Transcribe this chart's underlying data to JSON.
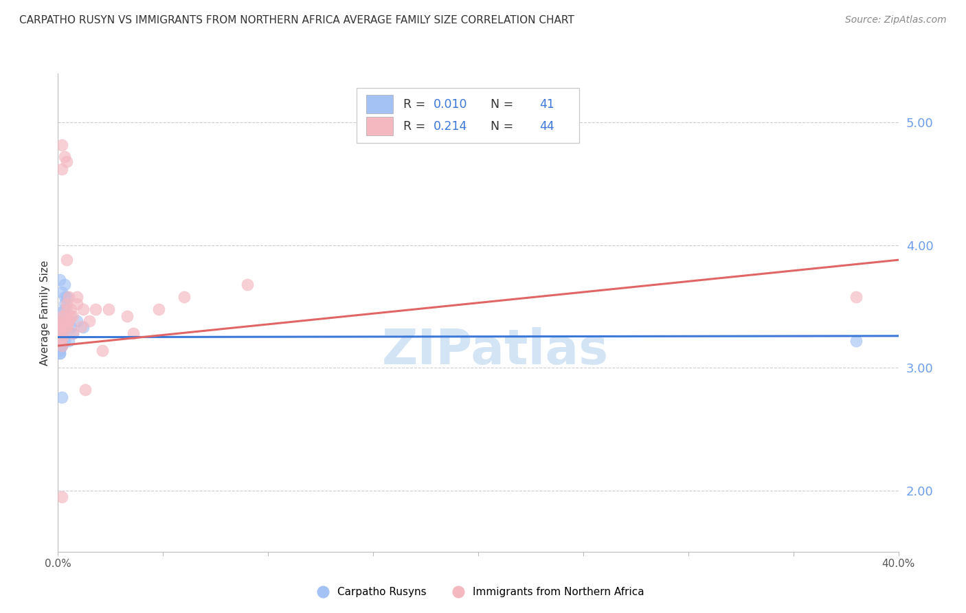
{
  "title": "CARPATHO RUSYN VS IMMIGRANTS FROM NORTHERN AFRICA AVERAGE FAMILY SIZE CORRELATION CHART",
  "source": "Source: ZipAtlas.com",
  "ylabel": "Average Family Size",
  "right_yticks": [
    2.0,
    3.0,
    4.0,
    5.0
  ],
  "right_ytick_labels": [
    "2.00",
    "3.00",
    "4.00",
    "5.00"
  ],
  "blue_color": "#a4c2f4",
  "pink_color": "#f4b8c1",
  "blue_line_color": "#3c78d8",
  "pink_line_color": "#e06666",
  "right_axis_color": "#6d9eeb",
  "legend_blue_text_color": "#3c78d8",
  "legend_black_color": "#333333",
  "watermark_color": "#cfe2f3",
  "watermark": "ZIPatlas",
  "blue_scatter_x": [
    0.001,
    0.002,
    0.001,
    0.002,
    0.003,
    0.001,
    0.002,
    0.001,
    0.002,
    0.002,
    0.001,
    0.002,
    0.003,
    0.002,
    0.001,
    0.002,
    0.003,
    0.002,
    0.003,
    0.001,
    0.002,
    0.003,
    0.002,
    0.004,
    0.003,
    0.002,
    0.002,
    0.001,
    0.003,
    0.003,
    0.007,
    0.006,
    0.005,
    0.009,
    0.012,
    0.002,
    0.002,
    0.001,
    0.002,
    0.001,
    0.38
  ],
  "blue_scatter_y": [
    3.72,
    3.62,
    3.45,
    3.35,
    3.58,
    3.22,
    3.26,
    3.3,
    3.38,
    3.18,
    3.14,
    3.24,
    3.48,
    3.34,
    3.24,
    3.28,
    3.68,
    3.33,
    3.38,
    3.12,
    3.28,
    3.52,
    3.22,
    3.58,
    3.33,
    3.33,
    3.28,
    3.18,
    3.22,
    3.38,
    3.28,
    3.33,
    3.22,
    3.38,
    3.33,
    2.76,
    3.18,
    3.12,
    3.25,
    3.18,
    3.22
  ],
  "pink_scatter_x": [
    0.001,
    0.002,
    0.003,
    0.002,
    0.004,
    0.002,
    0.003,
    0.001,
    0.003,
    0.002,
    0.005,
    0.004,
    0.002,
    0.006,
    0.005,
    0.007,
    0.003,
    0.004,
    0.002,
    0.004,
    0.002,
    0.005,
    0.009,
    0.004,
    0.006,
    0.007,
    0.012,
    0.015,
    0.011,
    0.009,
    0.018,
    0.013,
    0.021,
    0.036,
    0.033,
    0.024,
    0.06,
    0.048,
    0.09,
    0.002,
    0.002,
    0.004,
    0.002,
    0.38
  ],
  "pink_scatter_y": [
    3.34,
    3.24,
    4.72,
    4.62,
    3.88,
    3.28,
    3.38,
    3.34,
    3.42,
    3.24,
    3.38,
    3.34,
    3.42,
    3.48,
    3.38,
    3.42,
    3.34,
    3.48,
    3.38,
    3.52,
    3.18,
    3.58,
    3.52,
    3.34,
    3.42,
    3.28,
    3.48,
    3.38,
    3.34,
    3.58,
    3.48,
    2.82,
    3.14,
    3.28,
    3.42,
    3.48,
    3.58,
    3.48,
    3.68,
    3.34,
    4.82,
    4.68,
    1.95,
    3.58
  ],
  "blue_trend_x": [
    0.0,
    0.4
  ],
  "blue_trend_y": [
    3.25,
    3.26
  ],
  "pink_trend_x": [
    0.0,
    0.4
  ],
  "pink_trend_y": [
    3.18,
    3.88
  ],
  "xmin": 0.0,
  "xmax": 0.4,
  "ymin": 1.5,
  "ymax": 5.4,
  "title_fontsize": 11,
  "source_fontsize": 10,
  "ylabel_fontsize": 11,
  "grid_color": "#cccccc",
  "legend_box_color": "#e8e8e8",
  "bottom_legend_labels": [
    "Carpatho Rusyns",
    "Immigrants from Northern Africa"
  ]
}
